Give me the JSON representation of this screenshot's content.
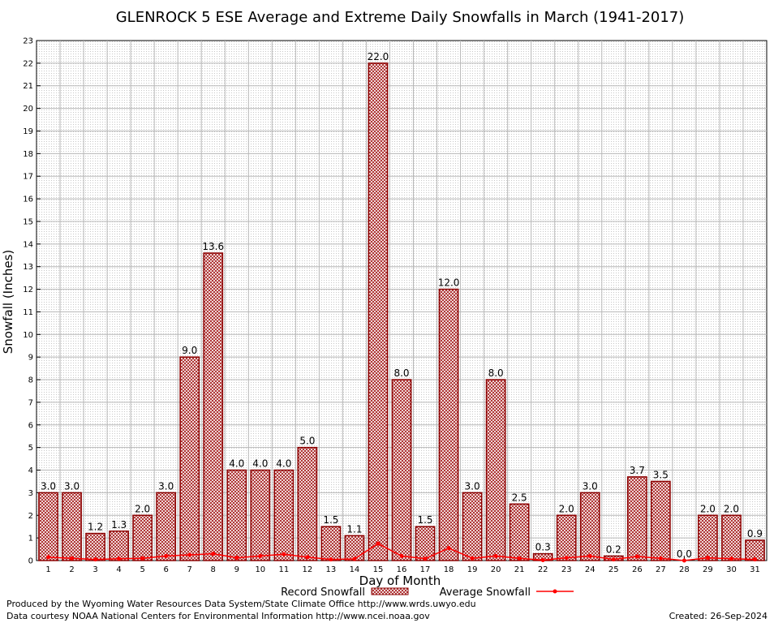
{
  "chart_data": {
    "type": "bar",
    "title": "GLENROCK 5 ESE Average and Extreme Daily Snowfalls in March (1941-2017)",
    "xlabel": "Day of Month",
    "ylabel": "Snowfall (Inches)",
    "ylim": [
      0,
      23
    ],
    "yticks": [
      "0",
      "1",
      "2",
      "3",
      "4",
      "5",
      "6",
      "7",
      "8",
      "9",
      "10",
      "11",
      "12",
      "13",
      "14",
      "15",
      "16",
      "17",
      "18",
      "19",
      "20",
      "21",
      "22",
      "23"
    ],
    "categories": [
      "1",
      "2",
      "3",
      "4",
      "5",
      "6",
      "7",
      "8",
      "9",
      "10",
      "11",
      "12",
      "13",
      "14",
      "15",
      "16",
      "17",
      "18",
      "19",
      "20",
      "21",
      "22",
      "23",
      "24",
      "25",
      "26",
      "27",
      "28",
      "29",
      "30",
      "31"
    ],
    "series": [
      {
        "name": "Record Snowfall",
        "type": "bar",
        "values": [
          3.0,
          3.0,
          1.2,
          1.3,
          2.0,
          3.0,
          9.0,
          13.6,
          4.0,
          4.0,
          4.0,
          5.0,
          1.5,
          1.1,
          22.0,
          8.0,
          1.5,
          12.0,
          3.0,
          8.0,
          2.5,
          0.3,
          2.0,
          3.0,
          0.2,
          3.7,
          3.5,
          0.0,
          2.0,
          2.0,
          0.9
        ],
        "labels": [
          "3.0",
          "3.0",
          "1.2",
          "1.3",
          "2.0",
          "3.0",
          "9.0",
          "13.6",
          "4.0",
          "4.0",
          "4.0",
          "5.0",
          "1.5",
          "1.1",
          "22.0",
          "8.0",
          "1.5",
          "12.0",
          "3.0",
          "8.0",
          "2.5",
          "0.3",
          "2.0",
          "3.0",
          "0.2",
          "3.7",
          "3.5",
          "0.0",
          "2.0",
          "2.0",
          "0.9"
        ]
      },
      {
        "name": "Average Snowfall",
        "type": "line",
        "values": [
          0.15,
          0.1,
          0.05,
          0.08,
          0.1,
          0.2,
          0.25,
          0.3,
          0.12,
          0.2,
          0.28,
          0.15,
          0.05,
          0.07,
          0.75,
          0.2,
          0.08,
          0.55,
          0.1,
          0.2,
          0.1,
          0.02,
          0.12,
          0.2,
          0.05,
          0.18,
          0.1,
          0.0,
          0.12,
          0.08,
          0.05
        ]
      }
    ],
    "grid": true,
    "legend": "bottom-center",
    "colors": {
      "bar_stroke": "#8b0000",
      "bar_fill": "#f2d6d6",
      "line": "#ff0000",
      "grid": "#b8b8b8"
    }
  },
  "footer": {
    "produced_by": "Produced by the Wyoming Water Resources Data System/State Climate Office http://www.wrds.uwyo.edu",
    "data_courtesy": "Data courtesy NOAA National Centers for Environmental Information http://www.ncei.noaa.gov",
    "created": "Created:  26-Sep-2024"
  }
}
